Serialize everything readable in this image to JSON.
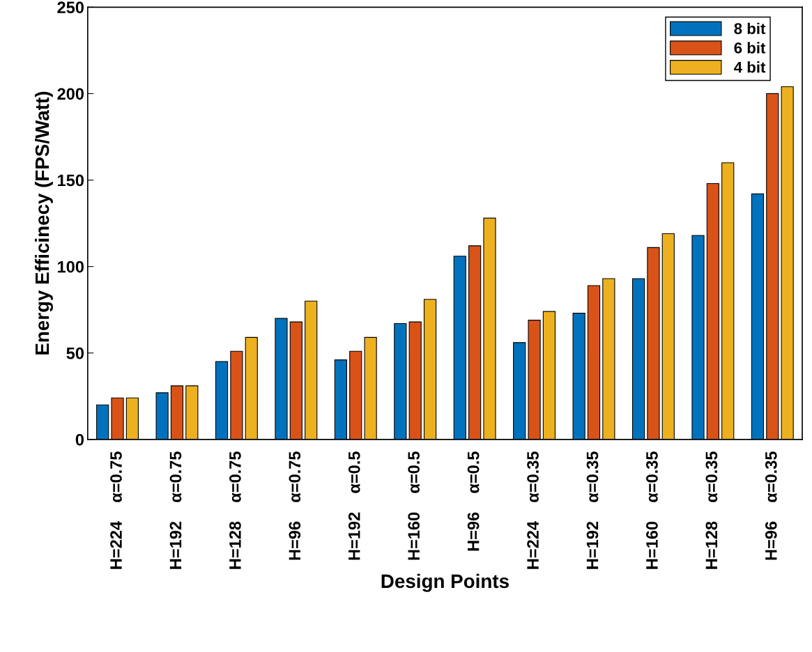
{
  "chart_data": {
    "type": "bar",
    "xlabel": "Design Points",
    "ylabel": "Energy Efficinecy (FPS/Watt)",
    "categories": [
      "H=224    α=0.75",
      "H=192    α=0.75",
      "H=128    α=0.75",
      "H=96    α=0.75",
      "H=192    α=0.5",
      "H=160    α=0.5",
      "H=96    α=0.5",
      "H=224    α=0.35",
      "H=192    α=0.35",
      "H=160    α=0.35",
      "H=128    α=0.35",
      "H=96    α=0.35"
    ],
    "series": [
      {
        "name": "8 bit",
        "color": "#0072bd",
        "values": [
          20,
          27,
          45,
          70,
          46,
          67,
          106,
          56,
          73,
          93,
          118,
          142
        ]
      },
      {
        "name": "6 bit",
        "color": "#d95319",
        "values": [
          24,
          31,
          51,
          68,
          51,
          68,
          112,
          69,
          89,
          111,
          148,
          200
        ]
      },
      {
        "name": "4 bit",
        "color": "#edb120",
        "values": [
          24,
          31,
          59,
          80,
          59,
          81,
          128,
          74,
          93,
          119,
          160,
          204
        ]
      }
    ],
    "ylim": [
      0,
      250
    ],
    "yticks": [
      0,
      50,
      100,
      150,
      200,
      250
    ],
    "grid": false,
    "legend": "top right"
  }
}
